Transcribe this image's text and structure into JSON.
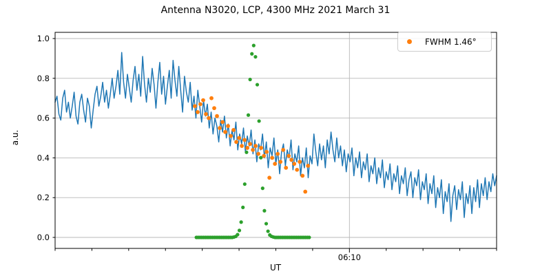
{
  "title": "Antenna N3020, LCP, 4300 MHz 2021 March 31",
  "axes": {
    "xlabel": "UT",
    "ylabel": "a.u.",
    "yticks": [
      {
        "label": "0.0",
        "value": 0.0
      },
      {
        "label": "0.2",
        "value": 0.2
      },
      {
        "label": "0.4",
        "value": 0.4
      },
      {
        "label": "0.6",
        "value": 0.6
      },
      {
        "label": "0.8",
        "value": 0.8
      },
      {
        "label": "1.0",
        "value": 1.0
      }
    ],
    "x_axis": {
      "start_time": "05:30",
      "end_time": "06:30",
      "minor_tick_interval_min": 5,
      "major_tick": {
        "t_min": 40,
        "label": "06:10"
      }
    }
  },
  "legend": {
    "label": "FWHM 1.46°",
    "marker_color": "#ff7f0e",
    "position": "upper right"
  },
  "colors": {
    "signal_line": "#1f77b4",
    "fit_points": "#ff7f0e",
    "beam_gaussian": "#2ca02c",
    "grid": "#b8b8b8",
    "spine": "#000000"
  },
  "chart_data": {
    "type": "line",
    "title": "Antenna N3020, LCP, 4300 MHz 2021 March 31",
    "xlabel": "UT",
    "ylabel": "a.u.",
    "ylim": [
      -0.055,
      1.03
    ],
    "grid": true,
    "x_units": "minutes after 05:30 UT",
    "x_range_min": [
      0,
      60
    ],
    "labeled_xtick": {
      "t_min": 40,
      "label": "06:10"
    },
    "legend_entries": [
      {
        "label": "FWHM 1.46°",
        "series": "fit-points",
        "color": "#ff7f0e"
      }
    ],
    "series": [
      {
        "name": "drift-scan-signal",
        "type": "line",
        "color": "#1f77b4",
        "t_start_min": 0,
        "dt_min": 0.25862,
        "values": [
          0.68,
          0.71,
          0.62,
          0.59,
          0.7,
          0.74,
          0.63,
          0.68,
          0.6,
          0.66,
          0.73,
          0.61,
          0.57,
          0.68,
          0.72,
          0.64,
          0.58,
          0.7,
          0.66,
          0.55,
          0.64,
          0.72,
          0.76,
          0.66,
          0.71,
          0.78,
          0.68,
          0.74,
          0.65,
          0.72,
          0.8,
          0.7,
          0.76,
          0.84,
          0.72,
          0.93,
          0.78,
          0.7,
          0.82,
          0.75,
          0.68,
          0.79,
          0.86,
          0.74,
          0.82,
          0.71,
          0.91,
          0.77,
          0.68,
          0.8,
          0.73,
          0.85,
          0.77,
          0.65,
          0.78,
          0.88,
          0.72,
          0.81,
          0.67,
          0.76,
          0.84,
          0.7,
          0.89,
          0.79,
          0.71,
          0.86,
          0.74,
          0.63,
          0.81,
          0.73,
          0.68,
          0.78,
          0.64,
          0.71,
          0.6,
          0.74,
          0.66,
          0.58,
          0.69,
          0.61,
          0.67,
          0.55,
          0.63,
          0.52,
          0.6,
          0.56,
          0.48,
          0.59,
          0.53,
          0.61,
          0.5,
          0.57,
          0.46,
          0.54,
          0.49,
          0.58,
          0.44,
          0.52,
          0.47,
          0.55,
          0.43,
          0.51,
          0.46,
          0.54,
          0.42,
          0.49,
          0.38,
          0.47,
          0.44,
          0.52,
          0.4,
          0.48,
          0.35,
          0.45,
          0.41,
          0.5,
          0.37,
          0.44,
          0.32,
          0.43,
          0.47,
          0.36,
          0.44,
          0.4,
          0.49,
          0.34,
          0.42,
          0.38,
          0.46,
          0.31,
          0.4,
          0.35,
          0.45,
          0.3,
          0.41,
          0.37,
          0.52,
          0.43,
          0.36,
          0.47,
          0.39,
          0.46,
          0.35,
          0.49,
          0.42,
          0.53,
          0.44,
          0.38,
          0.5,
          0.4,
          0.46,
          0.36,
          0.44,
          0.33,
          0.42,
          0.38,
          0.45,
          0.31,
          0.4,
          0.35,
          0.43,
          0.3,
          0.38,
          0.34,
          0.42,
          0.28,
          0.36,
          0.32,
          0.4,
          0.27,
          0.35,
          0.3,
          0.39,
          0.25,
          0.33,
          0.29,
          0.37,
          0.24,
          0.32,
          0.28,
          0.36,
          0.22,
          0.31,
          0.27,
          0.35,
          0.21,
          0.29,
          0.33,
          0.2,
          0.3,
          0.26,
          0.34,
          0.19,
          0.28,
          0.24,
          0.32,
          0.17,
          0.27,
          0.22,
          0.31,
          0.15,
          0.25,
          0.2,
          0.29,
          0.12,
          0.23,
          0.18,
          0.27,
          0.08,
          0.21,
          0.26,
          0.14,
          0.24,
          0.19,
          0.28,
          0.1,
          0.22,
          0.17,
          0.26,
          0.12,
          0.25,
          0.18,
          0.29,
          0.15,
          0.27,
          0.21,
          0.3,
          0.19,
          0.28,
          0.23,
          0.32,
          0.26,
          0.31
        ]
      },
      {
        "name": "fit-points",
        "type": "scatter",
        "color": "#ff7f0e",
        "t_start_min": 19.0,
        "dt_min": 0.375,
        "values": [
          0.66,
          0.63,
          0.67,
          0.69,
          0.62,
          0.6,
          0.7,
          0.65,
          0.61,
          0.55,
          0.58,
          0.53,
          0.56,
          0.51,
          0.54,
          0.48,
          0.5,
          0.46,
          0.49,
          0.45,
          0.47,
          0.44,
          0.46,
          0.42,
          0.45,
          0.41,
          0.43,
          0.3,
          0.4,
          0.37,
          0.42,
          0.38,
          0.44,
          0.35,
          0.41,
          0.39,
          0.37,
          0.34,
          0.38,
          0.31,
          0.23,
          0.36
        ]
      },
      {
        "name": "beam-gaussian",
        "type": "scatter",
        "color": "#2ca02c",
        "t_start_min": 19.2,
        "dt_min": 0.2434,
        "values": [
          0,
          0,
          0,
          0,
          0,
          0,
          0,
          0,
          0,
          0,
          0,
          0,
          0,
          0,
          0,
          0,
          0,
          0,
          0,
          0,
          0,
          0.002,
          0.005,
          0.014,
          0.035,
          0.077,
          0.151,
          0.268,
          0.428,
          0.615,
          0.794,
          0.923,
          0.965,
          0.908,
          0.768,
          0.585,
          0.401,
          0.247,
          0.134,
          0.069,
          0.031,
          0.012,
          0.005,
          0.002,
          0,
          0,
          0,
          0,
          0,
          0,
          0,
          0,
          0,
          0,
          0,
          0,
          0,
          0,
          0,
          0,
          0,
          0,
          0,
          0
        ]
      }
    ]
  }
}
